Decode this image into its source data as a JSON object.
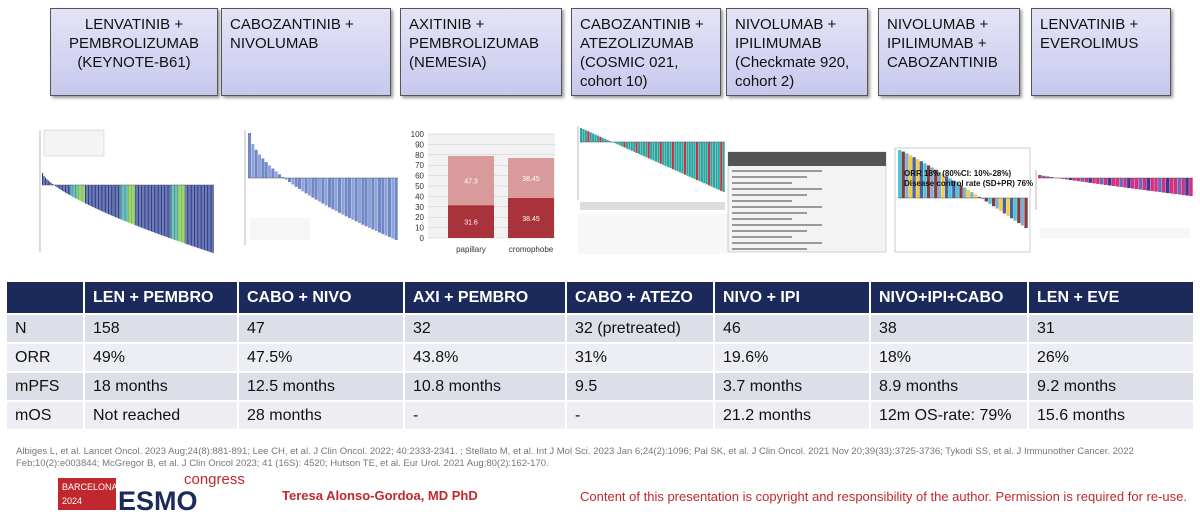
{
  "header_boxes": [
    [
      "LENVATINIB +",
      "PEMBROLIZUMAB",
      "(KEYNOTE-B61)"
    ],
    [
      "CABOZANTINIB +",
      "NIVOLUMAB"
    ],
    [
      "AXITINIB +",
      "PEMBROLIZUMAB",
      "(NEMESIA)"
    ],
    [
      "CABOZANTINIB +",
      "ATEZOLIZUMAB",
      "(COSMIC 021,",
      "cohort 10)"
    ],
    [
      "NIVOLUMAB +",
      "IPILIMUMAB",
      "(Checkmate 920,",
      "cohort 2)"
    ],
    [
      "NIVOLUMAB +",
      "IPILIMUMAB +",
      "CABOZANTINIB"
    ],
    [
      "LENVATINIB +",
      "EVEROLIMUS"
    ]
  ],
  "figures": {
    "axi_pembro": {
      "categories": [
        "papillary",
        "cromophobe"
      ],
      "segments": [
        {
          "color": "#a8333a",
          "values": [
            31.6,
            38.45
          ]
        },
        {
          "color": "#d99a9c",
          "values": [
            47.3,
            38.45
          ]
        }
      ],
      "ylim": [
        0,
        100
      ],
      "yticks": [
        0,
        10,
        20,
        30,
        40,
        50,
        60,
        70,
        80,
        90,
        100
      ]
    },
    "nivo_ipi_cabo": {
      "orr": "ORR 18% (80%CI: 10%-28%)",
      "dcr": "Disease control rate (SD+PR) 76%"
    }
  },
  "table": {
    "header": [
      "LEN + PEMBRO",
      "CABO + NIVO",
      "AXI + PEMBRO",
      "CABO + ATEZO",
      "NIVO + IPI",
      "NIVO+IPI+CABO",
      "LEN + EVE"
    ],
    "rows": [
      [
        "N",
        "158",
        "47",
        "32",
        "32 (pretreated)",
        "46",
        "38",
        "31"
      ],
      [
        "ORR",
        "49%",
        "47.5%",
        "43.8%",
        "31%",
        "19.6%",
        "18%",
        "26%"
      ],
      [
        "mPFS",
        "18 months",
        "12.5 months",
        "10.8 months",
        "9.5",
        "3.7 months",
        "8.9 months",
        "9.2 months"
      ],
      [
        "mOS",
        "Not reached",
        "28 months",
        "-",
        "-",
        "21.2 months",
        "12m OS-rate: 79%",
        "15.6 months"
      ]
    ]
  },
  "references": "Albiges L, et al. Lancet Oncol. 2023 Aug;24(8):881-891; Lee CH, et al. J Clin Oncol. 2022; 40:2333-2341. ; Stellato M, et al. Int J Mol Sci. 2023 Jan 6;24(2):1096; Pal SK, et al. J Clin Oncol. 2021 Nov 20;39(33):3725-3736; Tykodi SS, et al. J Immunother Cancer. 2022 Feb;10(2):e003844; McGregor B, et al. J Clin Oncol 2023; 41 (16S): 4520; Hutson TE, et al. Eur Urol. 2021 Aug;80(2):162-170.",
  "footer": {
    "logo": {
      "city": "BARCELONA",
      "year": "2024",
      "brand": "ESMO",
      "event": "congress"
    },
    "author": "Teresa Alonso-Gordoa, MD PhD",
    "copyright": "Content of this presentation is copyright and responsibility of the author. Permission is required for re-use."
  }
}
